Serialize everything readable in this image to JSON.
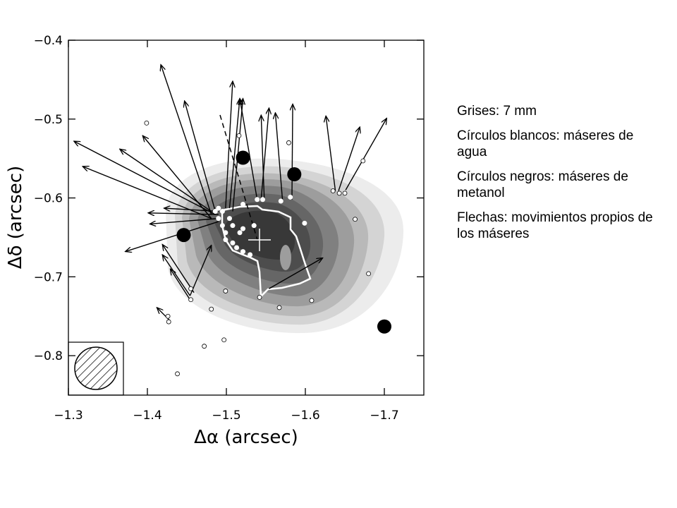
{
  "chart_data": {
    "type": "maser-map",
    "xlabel": "Δα (arcsec)",
    "ylabel": "Δδ (arcsec)",
    "xlim": [
      -1.3,
      -1.75
    ],
    "ylim": [
      -0.85,
      -0.4
    ],
    "xticks": [
      {
        "value": -1.3,
        "label": "−1.3"
      },
      {
        "value": -1.4,
        "label": "−1.4"
      },
      {
        "value": -1.5,
        "label": "−1.5"
      },
      {
        "value": -1.6,
        "label": "−1.6"
      },
      {
        "value": -1.7,
        "label": "−1.7"
      }
    ],
    "yticks": [
      {
        "value": -0.8,
        "label": "−0.8"
      },
      {
        "value": -0.7,
        "label": "−0.7"
      },
      {
        "value": -0.6,
        "label": "−0.6"
      },
      {
        "value": -0.5,
        "label": "−0.5"
      },
      {
        "value": -0.4,
        "label": "−0.4"
      }
    ],
    "methanol_masers": {
      "color": "#000000",
      "x": [
        -1.521,
        -1.586,
        -1.446,
        -1.7
      ],
      "y": [
        -0.549,
        -0.57,
        -0.647,
        -0.763
      ]
    },
    "water_masers_open": {
      "color": "#ffffff",
      "x": [
        -1.399,
        -1.516,
        -1.579,
        -1.673,
        -1.635,
        -1.643,
        -1.65,
        -1.663,
        -1.68,
        -1.499,
        -1.542,
        -1.567,
        -1.608,
        -1.455,
        -1.455,
        -1.481,
        -1.426,
        -1.427,
        -1.472,
        -1.497,
        -1.438
      ],
      "y": [
        -0.505,
        -0.521,
        -0.53,
        -0.553,
        -0.591,
        -0.594,
        -0.594,
        -0.627,
        -0.696,
        -0.718,
        -0.726,
        -0.739,
        -0.73,
        -0.715,
        -0.729,
        -0.741,
        -0.75,
        -0.757,
        -0.788,
        -0.78,
        -0.823
      ]
    },
    "water_masers_filled": {
      "color": "#ffffff",
      "x": [
        -1.486,
        -1.49,
        -1.495,
        -1.49,
        -1.495,
        -1.499,
        -1.499,
        -1.508,
        -1.513,
        -1.521,
        -1.53,
        -1.517,
        -1.521,
        -1.535,
        -1.508,
        -1.504,
        -1.539,
        -1.546,
        -1.569,
        -1.581,
        -1.599,
        -1.521
      ],
      "y": [
        -0.617,
        -0.613,
        -0.617,
        -0.626,
        -0.635,
        -0.644,
        -0.653,
        -0.657,
        -0.663,
        -0.668,
        -0.672,
        -0.644,
        -0.639,
        -0.635,
        -0.635,
        -0.626,
        -0.602,
        -0.602,
        -0.604,
        -0.599,
        -0.632,
        -0.608
      ]
    },
    "proper_motions": {
      "color": "#000000",
      "x": [
        -1.481,
        -1.486,
        -1.481,
        -1.481,
        -1.481,
        -1.486,
        -1.49,
        -1.49,
        -1.49,
        -1.49,
        -1.499,
        -1.504,
        -1.508,
        -1.539,
        -1.544,
        -1.548,
        -1.571,
        -1.583,
        -1.638,
        -1.642,
        -1.651,
        -1.554,
        -1.459,
        -1.454,
        -1.454,
        -1.428,
        -1.454
      ],
      "y": [
        -0.621,
        -0.621,
        -0.626,
        -0.617,
        -0.626,
        -0.617,
        -0.617,
        -0.621,
        -0.626,
        -0.63,
        -0.613,
        -0.613,
        -0.617,
        -0.602,
        -0.602,
        -0.602,
        -0.602,
        -0.602,
        -0.591,
        -0.591,
        -0.59,
        -0.715,
        -0.72,
        -0.724,
        -0.729,
        -0.755,
        -0.724
      ],
      "x_end": [
        -1.417,
        -1.307,
        -1.318,
        -1.365,
        -1.394,
        -1.447,
        -1.421,
        -1.401,
        -1.403,
        -1.372,
        -1.508,
        -1.517,
        -1.521,
        -1.517,
        -1.554,
        -1.544,
        -1.562,
        -1.584,
        -1.626,
        -1.669,
        -1.703,
        -1.622,
        -1.419,
        -1.419,
        -1.429,
        -1.412,
        -1.481
      ],
      "y_end": [
        -0.431,
        -0.528,
        -0.56,
        -0.538,
        -0.521,
        -0.477,
        -0.613,
        -0.619,
        -0.633,
        -0.668,
        -0.452,
        -0.474,
        -0.474,
        -0.474,
        -0.486,
        -0.495,
        -0.492,
        -0.481,
        -0.496,
        -0.51,
        -0.499,
        -0.676,
        -0.659,
        -0.672,
        -0.69,
        -0.739,
        -0.66
      ]
    }
  },
  "caption": [
    "Grises: 7 mm",
    "Círculos blancos: máseres de agua",
    "Círculos negros: máseres de metanol",
    "Flechas: movimientos propios de los máseres"
  ]
}
